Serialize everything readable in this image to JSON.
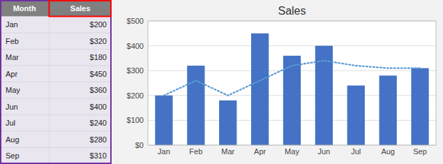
{
  "chart_data": {
    "type": "bar",
    "title": "Sales",
    "categories": [
      "Jan",
      "Feb",
      "Mar",
      "Apr",
      "May",
      "Jun",
      "Jul",
      "Aug",
      "Sep"
    ],
    "series": [
      {
        "type": "bar",
        "color": "#4472C4",
        "values": [
          200,
          320,
          180,
          450,
          360,
          400,
          240,
          280,
          310
        ],
        "value_labels": [
          "$200",
          "$320",
          "$180",
          "$450",
          "$360",
          "$400",
          "$240",
          "$280",
          "$310"
        ]
      },
      {
        "type": "line",
        "color": "#5B9BD5",
        "line_style": "dotted",
        "values": [
          200,
          260,
          200,
          260,
          320,
          340,
          320,
          310,
          310
        ]
      }
    ],
    "annotations": [
      "Month",
      "Sales"
    ],
    "ylim": [
      0,
      500
    ],
    "yticks": [
      {
        "value": 0,
        "label": "$0"
      },
      {
        "value": 100,
        "label": "$100"
      },
      {
        "value": 200,
        "label": "$200"
      },
      {
        "value": 300,
        "label": "$300"
      },
      {
        "value": 400,
        "label": "$400"
      },
      {
        "value": 500,
        "label": "$500"
      }
    ],
    "grid": true
  }
}
